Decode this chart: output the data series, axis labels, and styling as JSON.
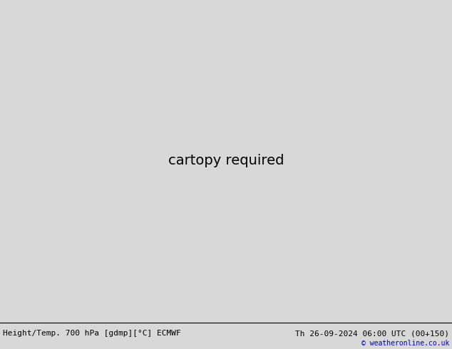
{
  "title_left": "Height/Temp. 700 hPa [gdmp][°C] ECMWF",
  "title_right": "Th 26-09-2024 06:00 UTC (00+150)",
  "copyright": "© weatheronline.co.uk",
  "bg_color": "#d8d8d8",
  "ocean_color": "#d8d8d8",
  "land_green_color": "#b8e8a8",
  "land_gray_color": "#b8b8b8",
  "bottom_bar_color": "#ffffff",
  "font_size_title": 8.0,
  "font_size_labels": 7.0,
  "contour_color_height": "#000000",
  "contour_color_temp_orange": "#ff8800",
  "contour_color_temp_red": "#dd0000",
  "contour_color_magenta": "#ee00aa",
  "fig_width": 6.34,
  "fig_height": 4.9,
  "dpi": 100
}
